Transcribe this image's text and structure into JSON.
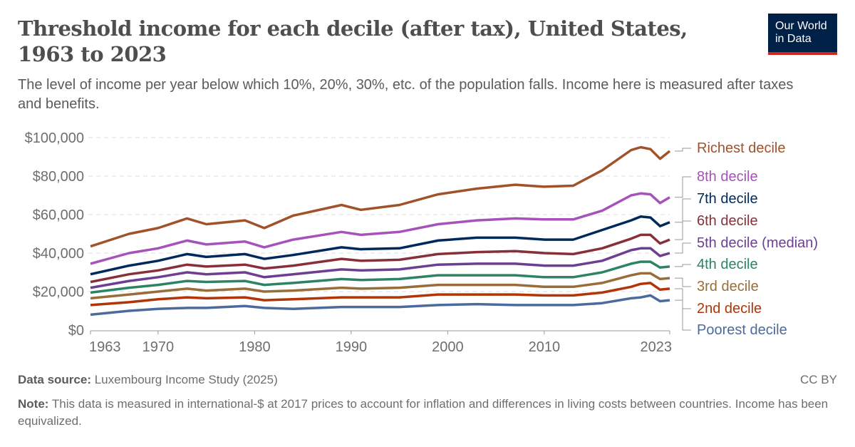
{
  "header": {
    "title": "Threshold income for each decile (after tax), United States, 1963 to 2023",
    "subtitle": "The level of income per year below which 10%, 20%, 30%, etc. of the population falls. Income here is measured after taxes and benefits.",
    "logo_text": "Our World in Data"
  },
  "footer": {
    "source_label": "Data source:",
    "source": "Luxembourg Income Study (2025)",
    "license": "CC BY",
    "note_label": "Note:",
    "note": "This data is measured in international-$ at 2017 prices to account for inflation and differences in living costs between countries. Income has been equivalized."
  },
  "chart_data": {
    "type": "line",
    "title": "",
    "xlabel": "",
    "ylabel": "",
    "xlim": [
      1963,
      2023
    ],
    "ylim": [
      0,
      100000
    ],
    "grid": "horizontal dashed",
    "legend": "right (line-end labels)",
    "x_ticks": [
      "1963",
      "1970",
      "1980",
      "1990",
      "2000",
      "2010",
      "2023"
    ],
    "y_ticks": [
      {
        "v": 0,
        "l": "$0"
      },
      {
        "v": 20000,
        "l": "$20,000"
      },
      {
        "v": 40000,
        "l": "$40,000"
      },
      {
        "v": 60000,
        "l": "$60,000"
      },
      {
        "v": 80000,
        "l": "$80,000"
      },
      {
        "v": 100000,
        "l": "$100,000"
      }
    ],
    "x": [
      1963,
      1967,
      1970,
      1973,
      1975,
      1979,
      1981,
      1984,
      1989,
      1991,
      1995,
      1999,
      2003,
      2007,
      2010,
      2013,
      2016,
      2019,
      2020,
      2021,
      2022,
      2023
    ],
    "series": [
      {
        "name": "Richest decile",
        "color": "#a2522b",
        "values": [
          43500,
          50000,
          53000,
          58000,
          55000,
          57000,
          53000,
          59500,
          65000,
          62500,
          65000,
          70500,
          73500,
          75500,
          74500,
          75000,
          83000,
          93500,
          95000,
          94000,
          89000,
          93000
        ]
      },
      {
        "name": "8th decile",
        "color": "#a652ba",
        "values": [
          34500,
          40000,
          42500,
          46500,
          44500,
          46000,
          43000,
          47000,
          51000,
          49500,
          51000,
          55000,
          57000,
          58000,
          57500,
          57500,
          62000,
          70000,
          71000,
          70500,
          66000,
          69000
        ]
      },
      {
        "name": "7th decile",
        "color": "#00295b",
        "values": [
          29000,
          33500,
          36000,
          39500,
          38000,
          39500,
          37000,
          39000,
          43000,
          42000,
          42500,
          46500,
          48000,
          48000,
          47000,
          47000,
          52000,
          57000,
          59000,
          58500,
          54000,
          56000
        ]
      },
      {
        "name": "6th decile",
        "color": "#883039",
        "values": [
          25000,
          29000,
          31000,
          34000,
          33000,
          34000,
          32000,
          33500,
          37000,
          36000,
          36500,
          39500,
          40500,
          41000,
          40000,
          39500,
          42500,
          47500,
          49500,
          49500,
          45000,
          47000
        ]
      },
      {
        "name": "5th decile (median)",
        "color": "#6d3e91",
        "values": [
          22000,
          25500,
          27500,
          30000,
          29000,
          30000,
          27500,
          29000,
          31500,
          31000,
          31500,
          34000,
          34500,
          34500,
          33500,
          33500,
          36000,
          41500,
          42500,
          42500,
          38500,
          40000
        ]
      },
      {
        "name": "4th decile",
        "color": "#2c8465",
        "values": [
          19500,
          22000,
          23500,
          25500,
          25000,
          25500,
          23500,
          24500,
          26500,
          26000,
          26500,
          28500,
          28500,
          28500,
          27500,
          27500,
          30000,
          34500,
          35500,
          35500,
          32500,
          33000
        ]
      },
      {
        "name": "3rd decile",
        "color": "#996d39",
        "values": [
          16500,
          18500,
          20000,
          21500,
          20500,
          21500,
          20000,
          20500,
          22000,
          21500,
          22000,
          23500,
          23500,
          23500,
          22500,
          22500,
          24500,
          28500,
          29500,
          29500,
          26500,
          27000
        ]
      },
      {
        "name": "2nd decile",
        "color": "#b13507",
        "values": [
          13000,
          14500,
          16000,
          17000,
          16500,
          17000,
          15500,
          16000,
          17000,
          17000,
          17000,
          18500,
          18500,
          18500,
          18000,
          18000,
          19500,
          22500,
          24000,
          24500,
          21000,
          21500
        ]
      },
      {
        "name": "Poorest decile",
        "color": "#4c6a9c",
        "values": [
          8000,
          10000,
          11000,
          11500,
          11500,
          12500,
          11500,
          11000,
          12000,
          12000,
          12000,
          13000,
          13500,
          13000,
          13000,
          13000,
          14000,
          16500,
          17000,
          18000,
          15000,
          15500
        ]
      }
    ]
  }
}
